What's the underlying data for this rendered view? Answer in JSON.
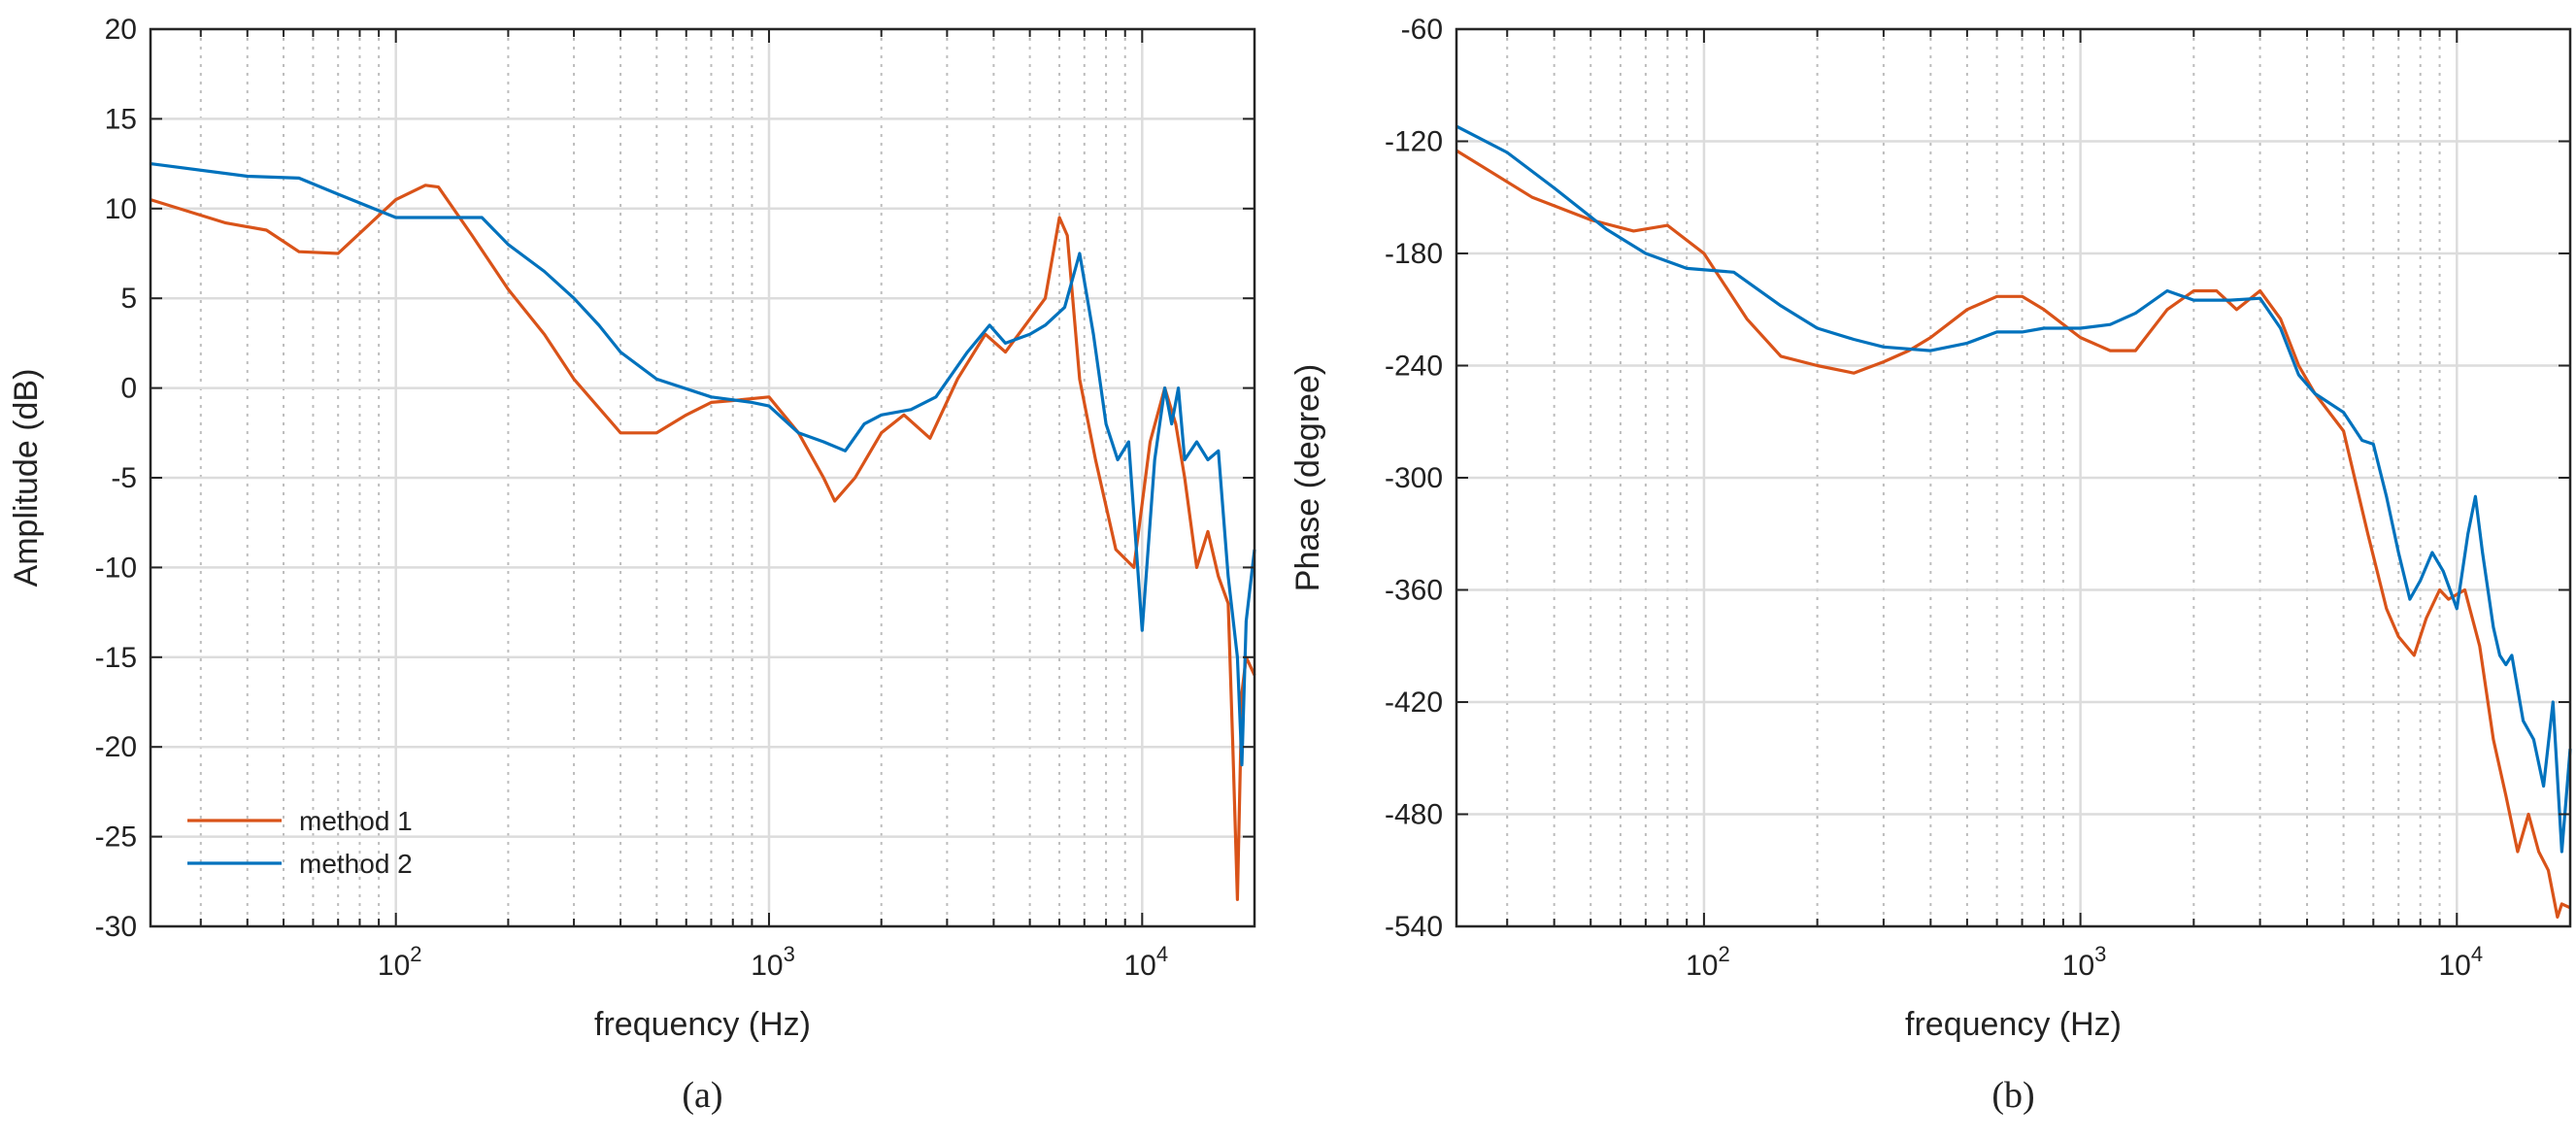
{
  "chart_data": [
    {
      "type": "line",
      "panel_label": "(a)",
      "xlabel": "frequency (Hz)",
      "ylabel": "Amplitude (dB)",
      "xscale": "log",
      "xlim": [
        22,
        20000
      ],
      "ylim": [
        -30,
        20
      ],
      "yticks": [
        "20",
        "15",
        "10",
        "5",
        "0",
        "-5",
        "-10",
        "-15",
        "-20",
        "-25",
        "-30"
      ],
      "xticks": [
        {
          "base": "10",
          "exp": "2"
        },
        {
          "base": "10",
          "exp": "3"
        },
        {
          "base": "10",
          "exp": "4"
        }
      ],
      "grid": true,
      "legend_position": "bottom-left",
      "series": [
        {
          "name": "method 1",
          "color": "#D95319",
          "x": [
            22,
            35,
            45,
            55,
            70,
            100,
            120,
            130,
            160,
            200,
            250,
            300,
            400,
            500,
            600,
            700,
            800,
            1000,
            1200,
            1400,
            1500,
            1700,
            2000,
            2300,
            2700,
            3200,
            3800,
            4300,
            5500,
            6000,
            6300,
            6800,
            7500,
            8500,
            9500,
            10500,
            11500,
            12300,
            13000,
            14000,
            15000,
            16000,
            17000,
            17500,
            18000,
            18500,
            19000,
            20000
          ],
          "y": [
            10.5,
            9.2,
            8.8,
            7.6,
            7.5,
            10.5,
            11.3,
            11.2,
            8.5,
            5.5,
            3.0,
            0.5,
            -2.5,
            -2.5,
            -1.5,
            -0.8,
            -0.7,
            -0.5,
            -2.5,
            -5.0,
            -6.3,
            -5.0,
            -2.5,
            -1.5,
            -2.8,
            0.5,
            3.0,
            2.0,
            5.0,
            9.5,
            8.5,
            0.5,
            -4.0,
            -9.0,
            -10.0,
            -3.0,
            0.0,
            -2.0,
            -5.0,
            -10.0,
            -8.0,
            -10.5,
            -12.0,
            -20.0,
            -28.5,
            -17.0,
            -15.0,
            -16.0
          ]
        },
        {
          "name": "method 2",
          "color": "#0072BD",
          "x": [
            22,
            40,
            55,
            70,
            100,
            150,
            170,
            200,
            250,
            300,
            350,
            400,
            500,
            700,
            900,
            1000,
            1200,
            1400,
            1600,
            1800,
            2000,
            2400,
            2800,
            3400,
            3900,
            4300,
            5000,
            5500,
            6200,
            6800,
            7400,
            8000,
            8600,
            9200,
            10000,
            10800,
            11500,
            12000,
            12500,
            13000,
            14000,
            15000,
            16000,
            17000,
            18000,
            18500,
            19000,
            20000
          ],
          "y": [
            12.5,
            11.8,
            11.7,
            10.8,
            9.5,
            9.5,
            9.5,
            8.0,
            6.5,
            5.0,
            3.5,
            2.0,
            0.5,
            -0.5,
            -0.8,
            -1.0,
            -2.5,
            -3.0,
            -3.5,
            -2.0,
            -1.5,
            -1.2,
            -0.5,
            2.0,
            3.5,
            2.5,
            3.0,
            3.5,
            4.5,
            7.5,
            3.0,
            -2.0,
            -4.0,
            -3.0,
            -13.5,
            -4.0,
            0.0,
            -2.0,
            0.0,
            -4.0,
            -3.0,
            -4.0,
            -3.5,
            -10.5,
            -15.0,
            -21.0,
            -13.0,
            -9.0
          ]
        }
      ]
    },
    {
      "type": "line",
      "panel_label": "(b)",
      "xlabel": "frequency (Hz)",
      "ylabel": "Phase (degree)",
      "xscale": "log",
      "xlim": [
        22,
        20000
      ],
      "ylim": [
        -540,
        -60
      ],
      "yticks": [
        "-60",
        "-120",
        "-180",
        "-240",
        "-300",
        "-360",
        "-420",
        "-480",
        "-540"
      ],
      "xticks": [
        {
          "base": "10",
          "exp": "2"
        },
        {
          "base": "10",
          "exp": "3"
        },
        {
          "base": "10",
          "exp": "4"
        }
      ],
      "grid": true,
      "series": [
        {
          "name": "method 1",
          "color": "#D95319",
          "x": [
            22,
            35,
            50,
            65,
            80,
            100,
            130,
            160,
            200,
            250,
            300,
            350,
            400,
            500,
            600,
            700,
            800,
            1000,
            1200,
            1400,
            1700,
            2000,
            2300,
            2600,
            3000,
            3400,
            3800,
            4200,
            5000,
            5800,
            6500,
            7000,
            7700,
            8300,
            9000,
            9500,
            10500,
            11500,
            12500,
            13500,
            14500,
            15500,
            16500,
            17500,
            18500,
            19000,
            20000
          ],
          "y": [
            -125,
            -150,
            -162,
            -168,
            -165,
            -180,
            -215,
            -235,
            -240,
            -244,
            -238,
            -232,
            -225,
            -210,
            -203,
            -203,
            -210,
            -225,
            -232,
            -232,
            -210,
            -200,
            -200,
            -210,
            -200,
            -215,
            -240,
            -255,
            -275,
            -330,
            -370,
            -385,
            -395,
            -375,
            -360,
            -365,
            -360,
            -390,
            -440,
            -470,
            -500,
            -480,
            -500,
            -510,
            -535,
            -528,
            -530
          ]
        },
        {
          "name": "method 2",
          "color": "#0072BD",
          "x": [
            22,
            30,
            40,
            55,
            70,
            90,
            120,
            160,
            200,
            250,
            300,
            400,
            500,
            600,
            700,
            800,
            1000,
            1200,
            1400,
            1700,
            2000,
            2500,
            3000,
            3400,
            3800,
            4200,
            5000,
            5600,
            6000,
            6500,
            7000,
            7500,
            8000,
            8600,
            9200,
            10000,
            10700,
            11200,
            11700,
            12500,
            13000,
            13500,
            14000,
            15000,
            16000,
            17000,
            18000,
            19000,
            20000
          ],
          "y": [
            -112,
            -126,
            -145,
            -167,
            -180,
            -188,
            -190,
            -208,
            -220,
            -226,
            -230,
            -232,
            -228,
            -222,
            -222,
            -220,
            -220,
            -218,
            -212,
            -200,
            -205,
            -205,
            -204,
            -220,
            -245,
            -255,
            -265,
            -280,
            -282,
            -310,
            -340,
            -365,
            -355,
            -340,
            -350,
            -370,
            -330,
            -310,
            -340,
            -380,
            -395,
            -400,
            -395,
            -430,
            -440,
            -465,
            -420,
            -500,
            -445
          ]
        }
      ]
    }
  ]
}
